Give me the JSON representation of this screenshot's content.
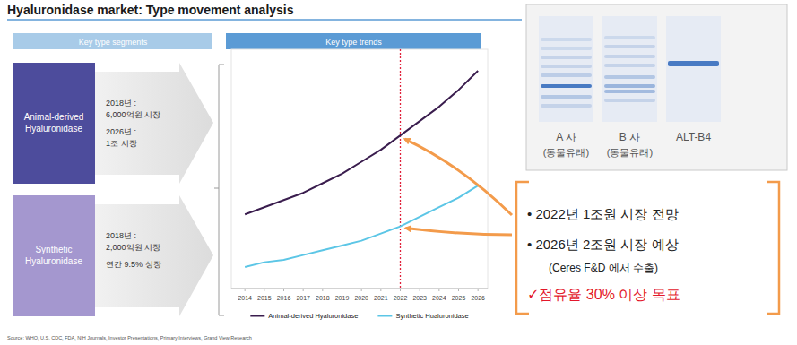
{
  "title": "Hyaluronidase market: Type movement analysis",
  "left_header": "Key type segments",
  "segments": [
    {
      "name": "Animal-derived Hyaluronidase",
      "color": "#4d4c9c",
      "notes": [
        "2018년 :",
        "6,000억원 시장",
        "2026년 :",
        "1조 시장"
      ]
    },
    {
      "name": "Synthetic Hyaluronidase",
      "color": "#a497cf",
      "notes": [
        "2018년 :",
        "2,000억원 시장",
        "연간 9.5% 성장"
      ]
    }
  ],
  "chart_data": {
    "type": "line",
    "title": "Key type trends",
    "x": [
      2014,
      2015,
      2016,
      2017,
      2018,
      2019,
      2020,
      2021,
      2022,
      2023,
      2024,
      2025,
      2026
    ],
    "series": [
      {
        "name": "Animal-derived Hyaluronidase",
        "color": "#3a1d4e",
        "values": [
          31,
          34,
          37,
          40,
          44,
          48,
          53,
          58,
          64,
          70,
          76,
          83,
          91
        ]
      },
      {
        "name": "Synthetic Hualuronidase",
        "color": "#5cc6e6",
        "values": [
          9,
          11,
          12,
          14,
          16,
          18,
          20,
          23,
          26,
          30,
          34,
          38,
          43
        ]
      }
    ],
    "xlim": [
      2013.3,
      2026.5
    ],
    "xticks": [
      2014,
      2015,
      2016,
      2017,
      2018,
      2019,
      2020,
      2021,
      2022,
      2023,
      2024,
      2025,
      2026
    ],
    "ylim": [
      0,
      100
    ],
    "tick_labels": "x",
    "legend": "bottom",
    "vline": 2022
  },
  "source": "Source: WHO, U.S. CDC, FDA, NIH Journals, Investor Presentations, Primary Interviews, Grand View Research",
  "gel": {
    "lanes": [
      {
        "label": "A 사",
        "sublabel": "(동물유래)"
      },
      {
        "label": "B 사",
        "sublabel": "(동물유래)"
      },
      {
        "label": "ALT-B4"
      }
    ]
  },
  "callout": {
    "items": [
      "• 2022년  1조원 시장 전망",
      "• 2026년  2조원 시장 예상"
    ],
    "note": "(Ceres F&D 에서 수출)",
    "goal": "✓점유율 30% 이상 목표"
  }
}
